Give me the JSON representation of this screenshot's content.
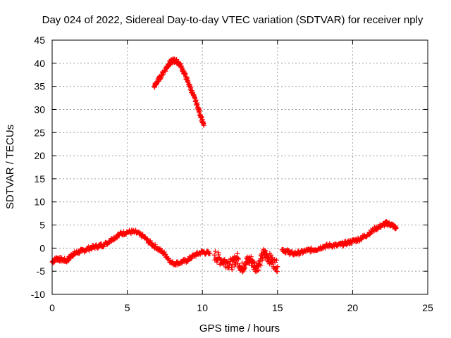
{
  "chart_data": {
    "type": "scatter",
    "title": "Day 024 of 2022, Sidereal Day-to-day VTEC variation (SDTVAR) for receiver nply",
    "xlabel": "GPS time / hours",
    "ylabel": "SDTVAR / TECUs",
    "xlim": [
      0,
      25
    ],
    "ylim": [
      -10,
      45
    ],
    "xticks": [
      0,
      5,
      10,
      15,
      20,
      25
    ],
    "yticks": [
      -10,
      -5,
      0,
      5,
      10,
      15,
      20,
      25,
      30,
      35,
      40,
      45
    ],
    "xtick_labels": [
      "0",
      "5",
      "10",
      "15",
      "20",
      "25"
    ],
    "ytick_labels": [
      "-10",
      "-5",
      "0",
      "5",
      "10",
      "15",
      "20",
      "25",
      "30",
      "35",
      "40",
      "45"
    ],
    "grid": true,
    "marker": "+",
    "color": "#ff0000",
    "series": [
      {
        "name": "main-track",
        "x": [
          0.0,
          0.3,
          0.6,
          1.0,
          1.3,
          1.6,
          2.0,
          2.5,
          3.0,
          3.5,
          4.0,
          4.5,
          5.0,
          5.5,
          6.0,
          6.5,
          7.0,
          7.5,
          8.0,
          8.5,
          9.0,
          9.5,
          10.0,
          10.5
        ],
        "y": [
          -3.0,
          -2.2,
          -2.5,
          -2.7,
          -1.5,
          -1.0,
          -0.6,
          0.0,
          0.4,
          0.8,
          2.0,
          3.0,
          3.5,
          3.5,
          2.7,
          1.2,
          0.0,
          -1.3,
          -3.3,
          -3.2,
          -2.6,
          -1.5,
          -0.8,
          -1.2
        ]
      },
      {
        "name": "scatter-cluster-11-15",
        "x": [
          10.8,
          11.2,
          11.6,
          12.0,
          12.3,
          12.6,
          12.9,
          13.2,
          13.5,
          13.8,
          14.1,
          14.4,
          14.7,
          15.0
        ],
        "y": [
          -1.5,
          -2.5,
          -3.0,
          -3.5,
          -2.0,
          -4.5,
          -3.0,
          -2.5,
          -4.0,
          -3.5,
          -1.0,
          -2.0,
          -3.0,
          -4.0
        ]
      },
      {
        "name": "evening-track",
        "x": [
          15.3,
          15.7,
          16.0,
          16.5,
          17.0,
          17.5,
          18.0,
          18.5,
          19.0,
          19.5,
          20.0,
          20.5,
          21.0,
          21.5,
          22.0,
          22.3,
          22.6,
          22.9
        ],
        "y": [
          -0.3,
          -0.8,
          -1.2,
          -1.0,
          -0.5,
          -0.3,
          0.3,
          0.6,
          0.6,
          1.0,
          1.5,
          2.0,
          3.0,
          4.2,
          5.0,
          5.4,
          5.0,
          4.3
        ]
      },
      {
        "name": "elevated-arc",
        "x": [
          6.8,
          7.0,
          7.3,
          7.6,
          7.8,
          8.0,
          8.2,
          8.5,
          8.8,
          9.1,
          9.4,
          9.7,
          9.9,
          10.1
        ],
        "y": [
          35.0,
          36.0,
          37.5,
          39.0,
          40.0,
          40.5,
          40.6,
          39.8,
          37.8,
          35.5,
          33.0,
          30.5,
          28.5,
          26.5
        ]
      }
    ]
  }
}
